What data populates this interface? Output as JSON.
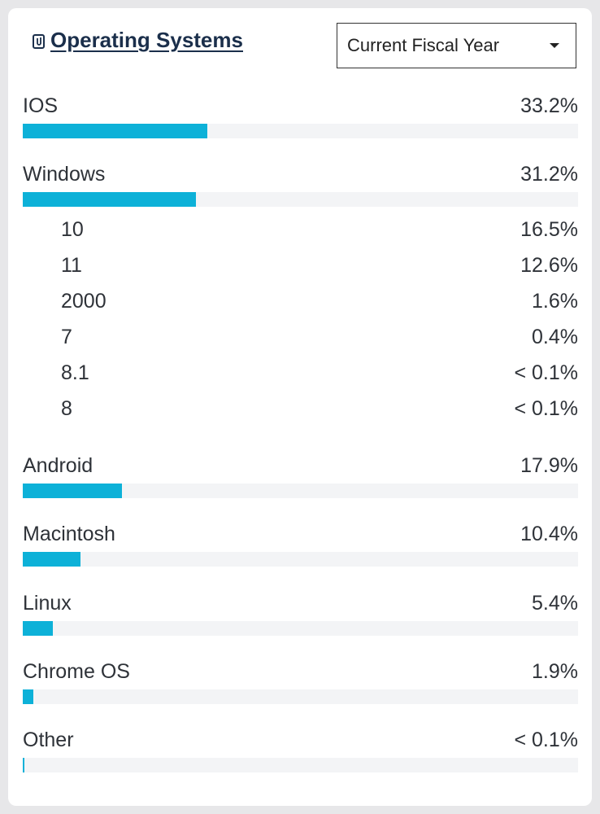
{
  "header": {
    "title": "Operating Systems",
    "period_select": "Current Fiscal Year"
  },
  "colors": {
    "bar": "#0db1d8",
    "track": "#f3f4f6",
    "title": "#1b2f4b"
  },
  "os": [
    {
      "label": "IOS",
      "pct": "33.2%",
      "value": 33.2
    },
    {
      "label": "Windows",
      "pct": "31.2%",
      "value": 31.2
    },
    {
      "label": "Android",
      "pct": "17.9%",
      "value": 17.9
    },
    {
      "label": "Macintosh",
      "pct": "10.4%",
      "value": 10.4
    },
    {
      "label": "Linux",
      "pct": "5.4%",
      "value": 5.4
    },
    {
      "label": "Chrome OS",
      "pct": "1.9%",
      "value": 1.9
    },
    {
      "label": "Other",
      "pct": "< 0.1%",
      "value": 0.1
    }
  ],
  "windows_versions": [
    {
      "label": "10",
      "pct": "16.5%"
    },
    {
      "label": "11",
      "pct": "12.6%"
    },
    {
      "label": "2000",
      "pct": "1.6%"
    },
    {
      "label": "7",
      "pct": "0.4%"
    },
    {
      "label": "8.1",
      "pct": "< 0.1%"
    },
    {
      "label": "8",
      "pct": "< 0.1%"
    }
  ]
}
